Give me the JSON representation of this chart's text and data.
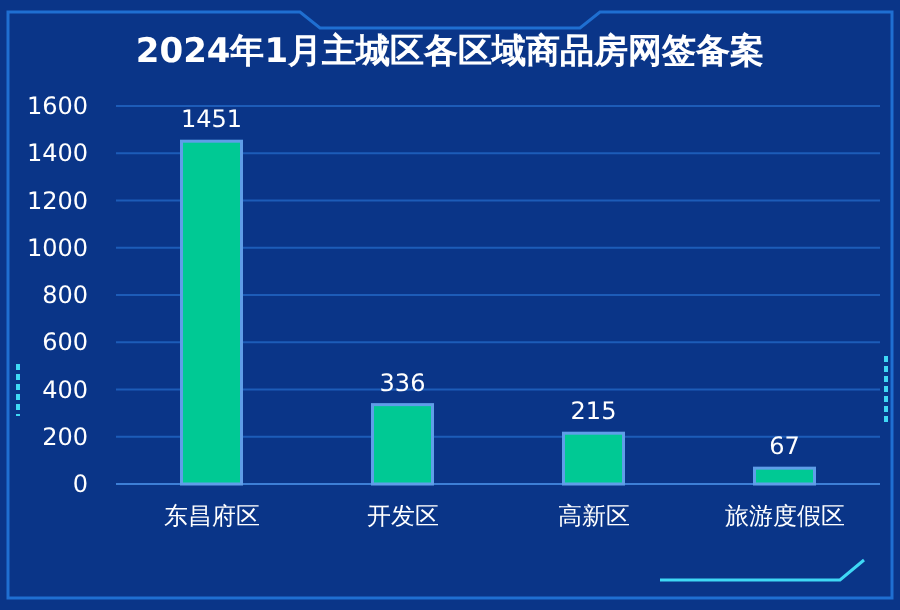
{
  "chart_data": {
    "type": "bar",
    "title": "2024年1月主城区各区域商品房网签备案",
    "categories": [
      "东昌府区",
      "开发区",
      "高新区",
      "旅游度假区"
    ],
    "values": [
      1451,
      336,
      215,
      67
    ],
    "color": "#00c994",
    "ylim": [
      0,
      1600
    ],
    "yticks": [
      0,
      200,
      400,
      600,
      800,
      1000,
      1200,
      1400,
      1600
    ],
    "grid": "y",
    "data_labels": true
  }
}
